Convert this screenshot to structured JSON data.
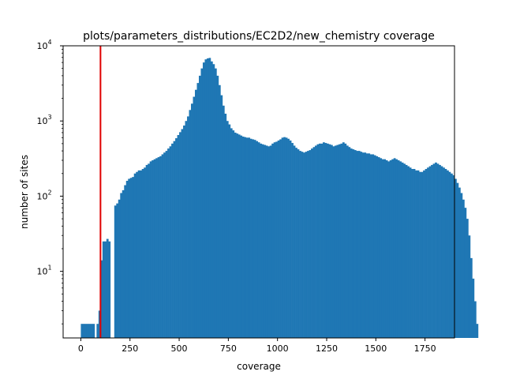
{
  "chart_data": {
    "type": "bar",
    "title": "plots/parameters_distributions/EC2D2/new_chemistry coverage",
    "xlabel": "coverage",
    "ylabel": "number of sites",
    "x_ticks": [
      "0",
      "250",
      "500",
      "750",
      "1000",
      "1250",
      "1500",
      "1750"
    ],
    "y_scale": "log",
    "xlim": [
      -90,
      1900
    ],
    "ylim": [
      1.3,
      10000
    ],
    "bin_width": 10,
    "bin_start": 0,
    "bar_color": "#1f77b4",
    "threshold_line": {
      "x": 100,
      "color": "#e00000"
    },
    "values": [
      2,
      2,
      2,
      2,
      2,
      2,
      2,
      0,
      2,
      3,
      14,
      25,
      25,
      27,
      25,
      0,
      0,
      75,
      80,
      90,
      110,
      120,
      140,
      160,
      170,
      175,
      180,
      200,
      210,
      220,
      220,
      230,
      240,
      260,
      270,
      290,
      300,
      310,
      320,
      330,
      340,
      360,
      380,
      400,
      430,
      460,
      500,
      540,
      590,
      650,
      710,
      780,
      870,
      1000,
      1150,
      1400,
      1700,
      2100,
      2600,
      3200,
      4000,
      5000,
      6000,
      6600,
      6800,
      6900,
      6200,
      5700,
      5000,
      4000,
      3000,
      2200,
      1600,
      1250,
      1000,
      900,
      800,
      750,
      700,
      680,
      660,
      640,
      620,
      610,
      600,
      600,
      580,
      570,
      560,
      540,
      520,
      500,
      490,
      480,
      470,
      460,
      470,
      500,
      520,
      530,
      550,
      570,
      600,
      610,
      600,
      580,
      550,
      510,
      470,
      440,
      420,
      400,
      390,
      380,
      390,
      400,
      410,
      430,
      450,
      470,
      490,
      500,
      500,
      520,
      510,
      500,
      490,
      480,
      460,
      470,
      480,
      490,
      500,
      520,
      500,
      470,
      450,
      430,
      420,
      410,
      400,
      400,
      390,
      380,
      380,
      370,
      370,
      360,
      360,
      350,
      340,
      330,
      320,
      310,
      310,
      300,
      290,
      300,
      310,
      320,
      310,
      300,
      290,
      280,
      270,
      260,
      250,
      240,
      230,
      230,
      220,
      220,
      210,
      210,
      220,
      230,
      240,
      250,
      260,
      270,
      280,
      270,
      260,
      250,
      240,
      230,
      220,
      210,
      200,
      190,
      170,
      150,
      130,
      110,
      90,
      70,
      50,
      30,
      15,
      8,
      4,
      2
    ]
  }
}
